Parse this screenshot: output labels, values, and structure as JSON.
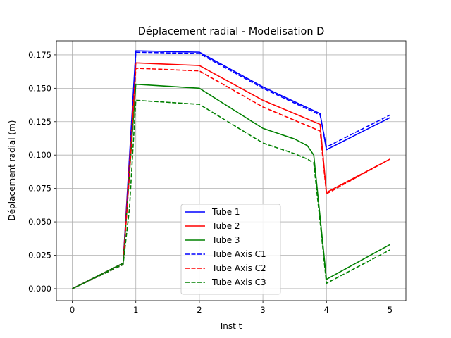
{
  "chart_data": {
    "type": "line",
    "title": "Déplacement radial - Modelisation D",
    "xlabel": "Inst t",
    "ylabel": "Déplacement radial (m)",
    "xlim": [
      -0.25,
      5.25
    ],
    "ylim": [
      -0.009,
      0.1855
    ],
    "xticks": [
      0,
      1,
      2,
      3,
      4,
      5
    ],
    "xtick_labels": [
      "0",
      "1",
      "2",
      "3",
      "4",
      "5"
    ],
    "yticks": [
      0.0,
      0.025,
      0.05,
      0.075,
      0.1,
      0.125,
      0.15,
      0.175
    ],
    "ytick_labels": [
      "0.000",
      "0.025",
      "0.050",
      "0.075",
      "0.100",
      "0.125",
      "0.150",
      "0.175"
    ],
    "grid": true,
    "legend_position": "lower-center",
    "series": [
      {
        "name": "Tube 1",
        "color": "#0000ff",
        "dash": "solid",
        "x": [
          0,
          0.8,
          1.0,
          2.0,
          3.0,
          3.9,
          4.0,
          5.0
        ],
        "y": [
          0.0,
          0.019,
          0.178,
          0.177,
          0.151,
          0.131,
          0.104,
          0.128
        ]
      },
      {
        "name": "Tube 2",
        "color": "#ff0000",
        "dash": "solid",
        "x": [
          0,
          0.8,
          1.0,
          2.0,
          3.0,
          3.9,
          4.0,
          5.0
        ],
        "y": [
          0.0,
          0.019,
          0.169,
          0.167,
          0.141,
          0.123,
          0.072,
          0.097
        ]
      },
      {
        "name": "Tube 3",
        "color": "#008000",
        "dash": "solid",
        "x": [
          0,
          0.8,
          1.0,
          2.0,
          3.0,
          3.5,
          3.7,
          3.8,
          4.0,
          5.0
        ],
        "y": [
          0.0,
          0.019,
          0.153,
          0.15,
          0.12,
          0.112,
          0.107,
          0.1,
          0.007,
          0.033
        ]
      },
      {
        "name": "Tube Axis C1",
        "color": "#0000ff",
        "dash": "dashed",
        "x": [
          0,
          0.8,
          0.9,
          1.0,
          2.0,
          3.0,
          3.9,
          4.0,
          5.0
        ],
        "y": [
          0.0,
          0.018,
          0.09,
          0.177,
          0.176,
          0.15,
          0.13,
          0.106,
          0.13
        ]
      },
      {
        "name": "Tube Axis C2",
        "color": "#ff0000",
        "dash": "dashed",
        "x": [
          0,
          0.8,
          0.9,
          1.0,
          2.0,
          3.0,
          3.9,
          4.0,
          5.0
        ],
        "y": [
          0.0,
          0.018,
          0.085,
          0.165,
          0.163,
          0.136,
          0.118,
          0.071,
          0.097
        ]
      },
      {
        "name": "Tube Axis C3",
        "color": "#008000",
        "dash": "dashed",
        "x": [
          0,
          0.8,
          0.9,
          1.0,
          2.0,
          3.0,
          3.5,
          3.7,
          3.8,
          3.9,
          4.0,
          5.0
        ],
        "y": [
          0.0,
          0.018,
          0.06,
          0.141,
          0.138,
          0.109,
          0.101,
          0.097,
          0.094,
          0.05,
          0.004,
          0.029
        ]
      }
    ]
  }
}
